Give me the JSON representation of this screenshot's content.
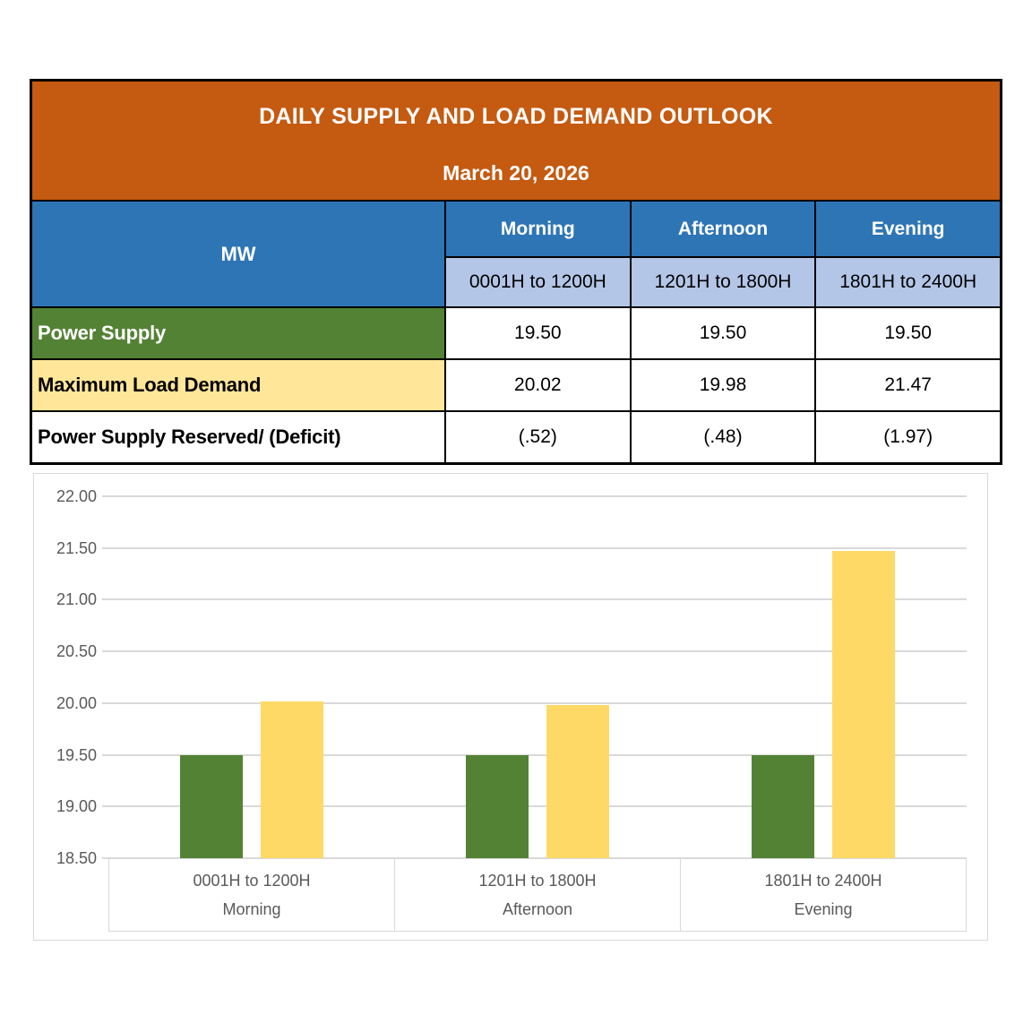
{
  "banner": {
    "title": "DAILY SUPPLY AND LOAD DEMAND OUTLOOK",
    "date": "March 20, 2026"
  },
  "table": {
    "unit_label": "MW",
    "columns": [
      {
        "period": "Morning",
        "time_range": "0001H to 1200H"
      },
      {
        "period": "Afternoon",
        "time_range": "1201H to 1800H"
      },
      {
        "period": "Evening",
        "time_range": "1801H to 2400H"
      }
    ],
    "rows": [
      {
        "label": "Power Supply",
        "values": [
          "19.50",
          "19.50",
          "19.50"
        ]
      },
      {
        "label": "Maximum Load Demand",
        "values": [
          "20.02",
          "19.98",
          "21.47"
        ]
      },
      {
        "label": "Power Supply Reserved/ (Deficit)",
        "values": [
          "(.52)",
          "(.48)",
          "(1.97)"
        ]
      }
    ]
  },
  "chart_data": {
    "type": "bar",
    "title": "",
    "xlabel": "",
    "ylabel": "",
    "categories": [
      "0001H to 1200H",
      "1201H to 1800H",
      "1801H to 2400H"
    ],
    "category_sublabels": [
      "Morning",
      "Afternoon",
      "Evening"
    ],
    "series": [
      {
        "name": "Power Supply",
        "color": "#548235",
        "values": [
          19.5,
          19.5,
          19.5
        ]
      },
      {
        "name": "Maximum Load Demand",
        "color": "#FFD966",
        "values": [
          20.02,
          19.98,
          21.47
        ]
      }
    ],
    "ylim": [
      18.5,
      22.0
    ],
    "ytick_step": 0.5,
    "ytick_decimals": 2,
    "grid": true,
    "legend": "none"
  },
  "colors": {
    "banner_bg": "#C55A11",
    "header_bg": "#2E75B6",
    "subheader_bg": "#B4C6E7",
    "supply_row_bg": "#548235",
    "demand_row_bg": "#FFE699",
    "bar_supply": "#548235",
    "bar_demand": "#FFD966",
    "axis_text": "#595959",
    "gridline": "#D9D9D9"
  }
}
